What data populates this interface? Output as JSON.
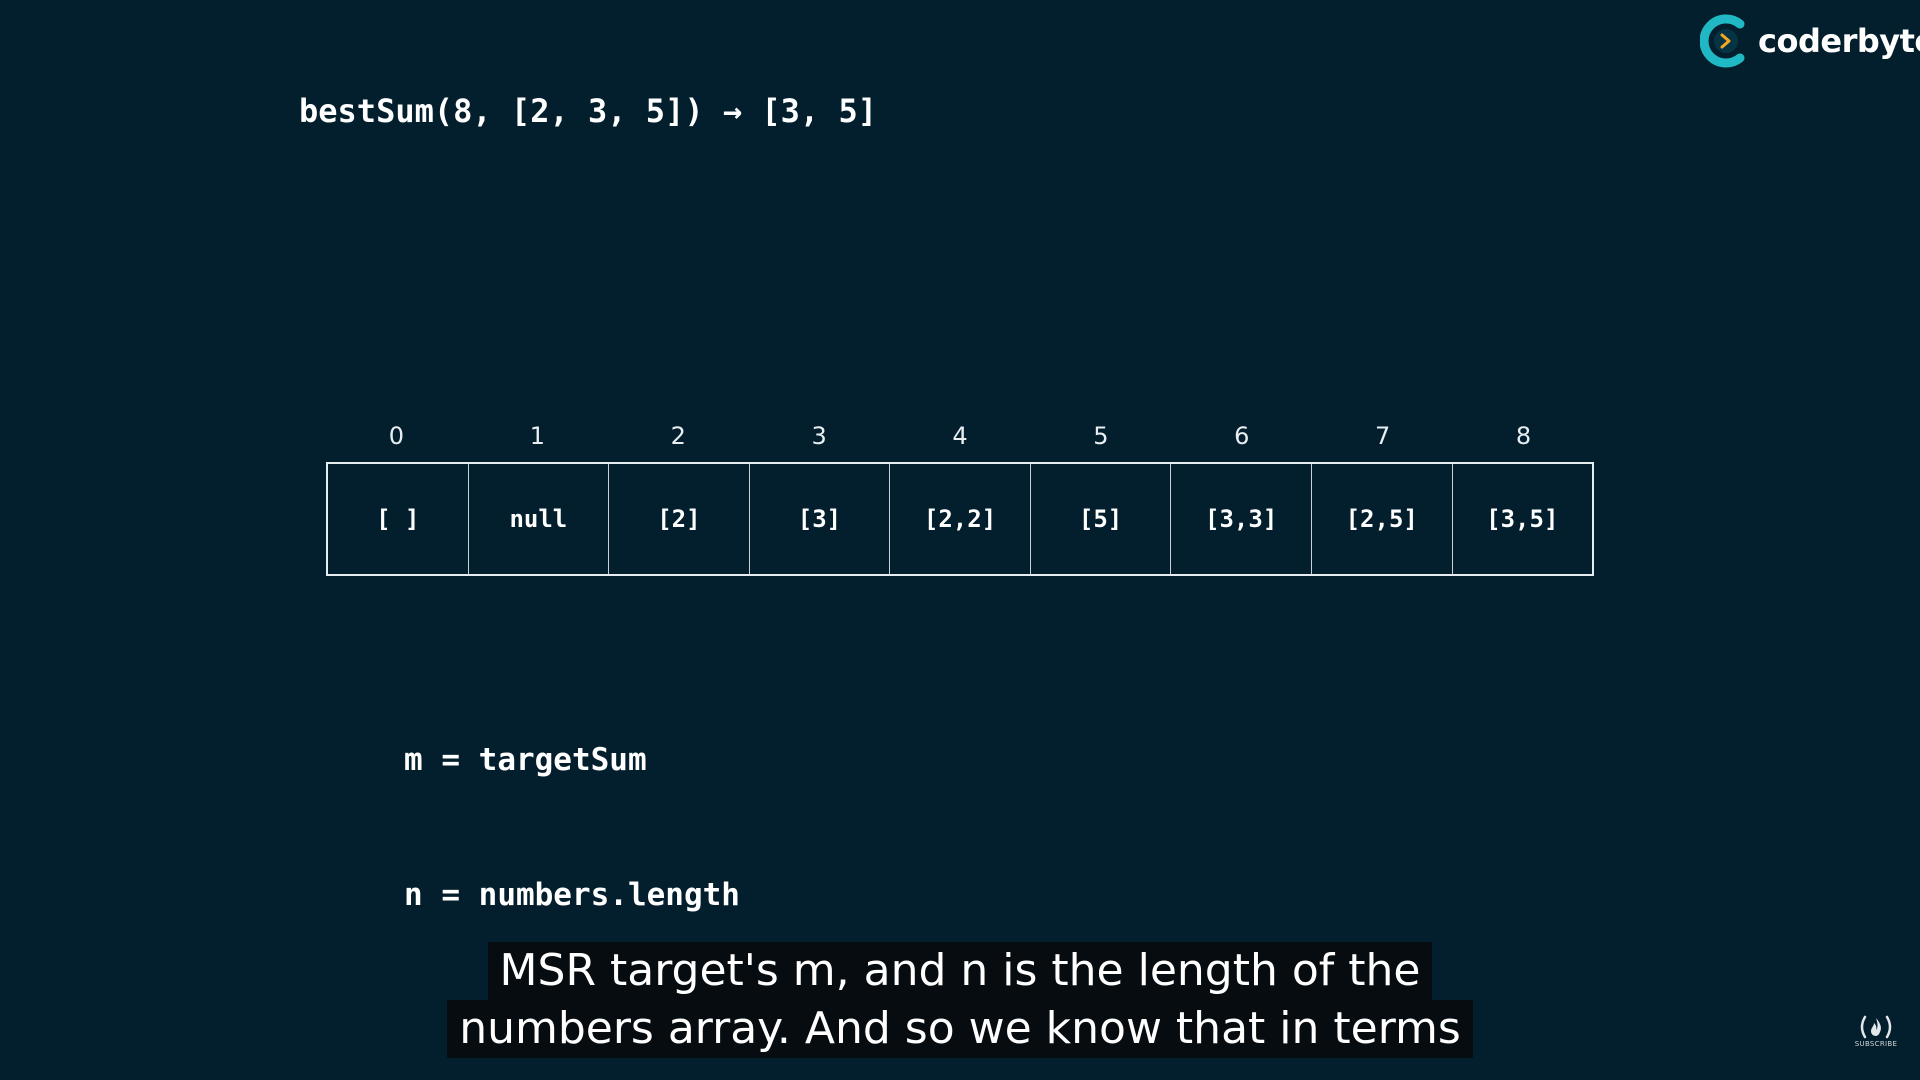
{
  "brand": {
    "name": "coderbyte",
    "icon": "coderbyte-logo-icon"
  },
  "expression": "bestSum(8, [2, 3, 5]) → [3, 5]",
  "table": {
    "indices": [
      "0",
      "1",
      "2",
      "3",
      "4",
      "5",
      "6",
      "7",
      "8"
    ],
    "cells": [
      "[ ]",
      "null",
      "[2]",
      "[3]",
      "[2,2]",
      "[5]",
      "[3,3]",
      "[2,5]",
      "[3,5]"
    ]
  },
  "definitions": {
    "m": "m = targetSum",
    "n": "n = numbers.length"
  },
  "captions": {
    "line1": "MSR target's m, and n is the length of the",
    "line2": "numbers array. And so we know that in terms"
  },
  "subscribe": {
    "icon": "freecodecamp-flame-icon",
    "label": "SUBSCRIBE"
  },
  "colors": {
    "background": "#031f2d",
    "brand_teal": "#1fb8c4",
    "brand_orange": "#f5a623"
  }
}
